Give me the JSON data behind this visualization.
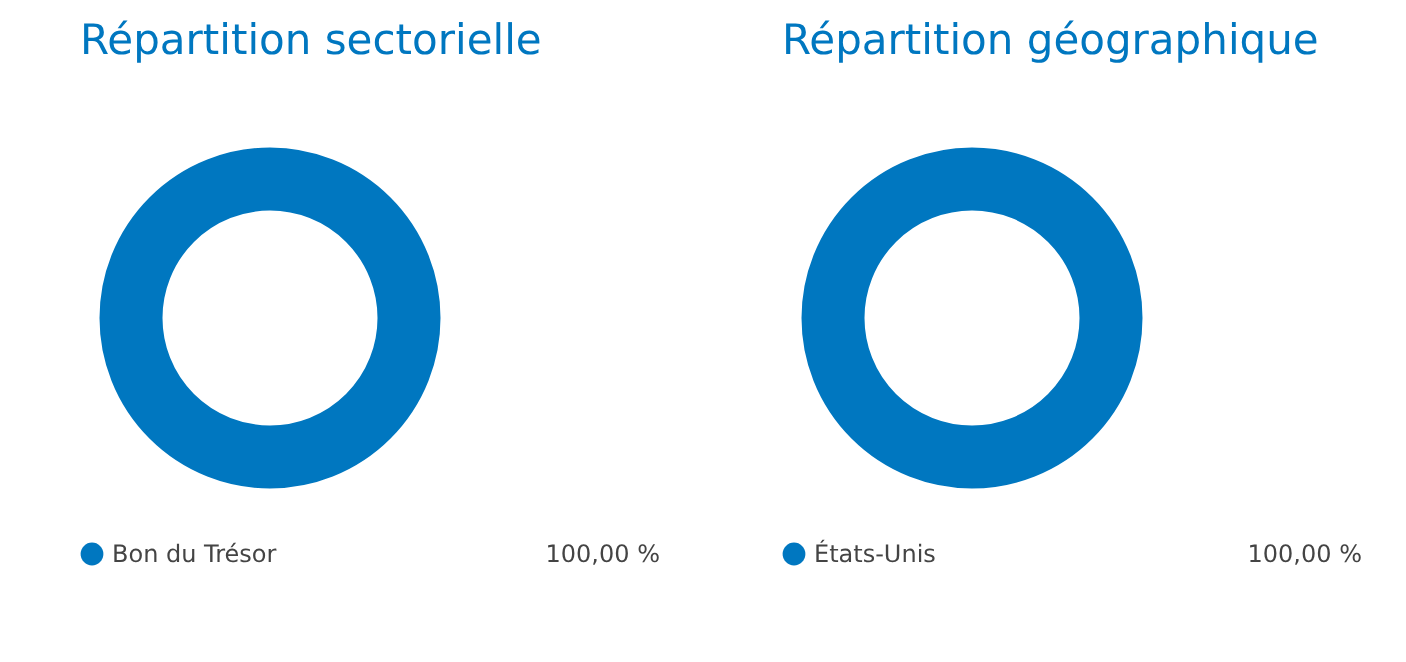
{
  "chart_data": [
    {
      "type": "donut",
      "title": "Répartition sectorielle",
      "categories": [
        "Bon du Trésor"
      ],
      "values": [
        100
      ],
      "colors": [
        "#0077c0"
      ],
      "value_labels": [
        "100,00 %"
      ],
      "legend": "bottom"
    },
    {
      "type": "donut",
      "title": "Répartition géographique",
      "categories": [
        "États-Unis"
      ],
      "values": [
        100
      ],
      "colors": [
        "#0077c0"
      ],
      "value_labels": [
        "100,00 %"
      ],
      "legend": "bottom"
    }
  ]
}
